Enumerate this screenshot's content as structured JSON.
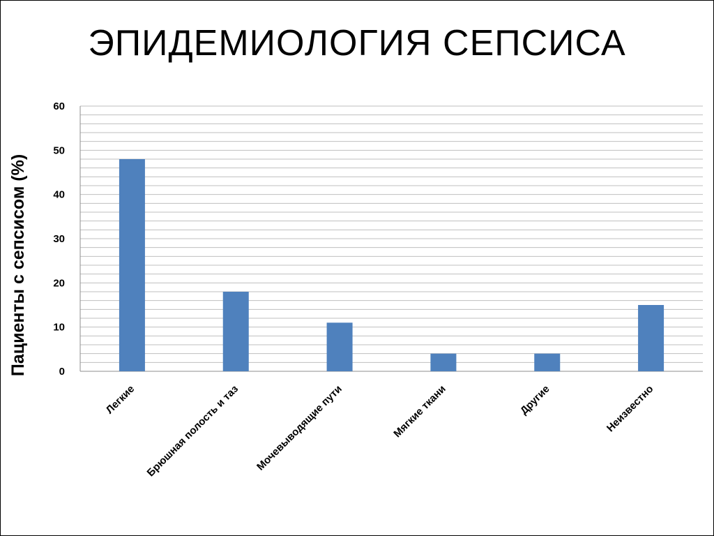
{
  "slide": {
    "title": "ЭПИДЕМИОЛОГИЯ СЕПСИСА"
  },
  "chart_data": {
    "type": "bar",
    "title": "",
    "xlabel": "",
    "ylabel": "Пациенты с сепсисом (%)",
    "categories": [
      "Легкие",
      "Брюшная полость и таз",
      "Мочевыводящие пути",
      "Мягкие ткани",
      "Другие",
      "Неизвестно"
    ],
    "values": [
      48,
      18,
      11,
      4,
      4,
      15
    ],
    "ylim": [
      0,
      60
    ],
    "yticks": [
      0,
      10,
      20,
      30,
      40,
      50,
      60
    ],
    "minor_gridline_step": 2,
    "grid": true,
    "legend": "none",
    "bar_color": "#4F81BD",
    "gridline_color": "#BFBFBF"
  }
}
